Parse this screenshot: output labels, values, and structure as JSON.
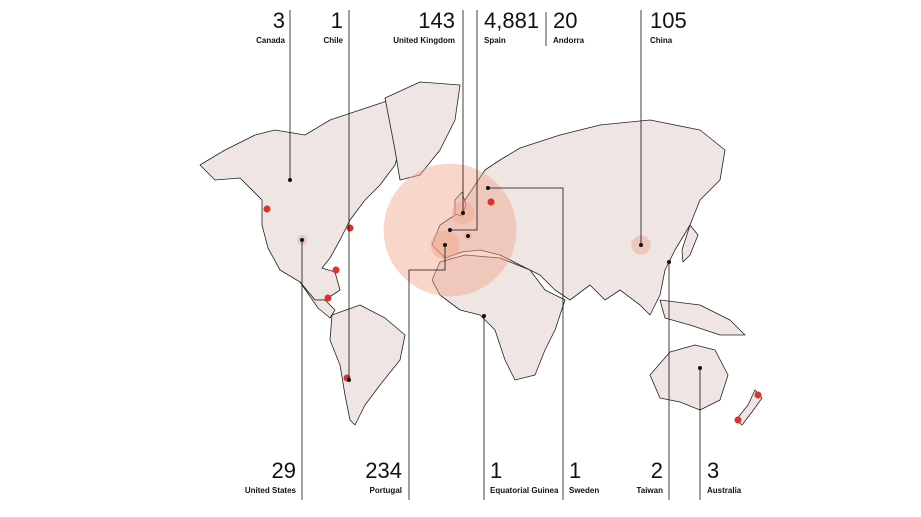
{
  "countries": [
    {
      "name": "Canada",
      "count": 3
    },
    {
      "name": "Chile",
      "count": 1
    },
    {
      "name": "United Kingdom",
      "count": 143
    },
    {
      "name": "Spain",
      "count": 4881,
      "count_label": "4,881"
    },
    {
      "name": "Andorra",
      "count": 20
    },
    {
      "name": "China",
      "count": 105
    },
    {
      "name": "United States",
      "count": 29
    },
    {
      "name": "Portugal",
      "count": 234
    },
    {
      "name": "Equatorial Guinea",
      "count": 1
    },
    {
      "name": "Sweden",
      "count": 1
    },
    {
      "name": "Taiwan",
      "count": 2
    },
    {
      "name": "Australia",
      "count": 3
    }
  ]
}
